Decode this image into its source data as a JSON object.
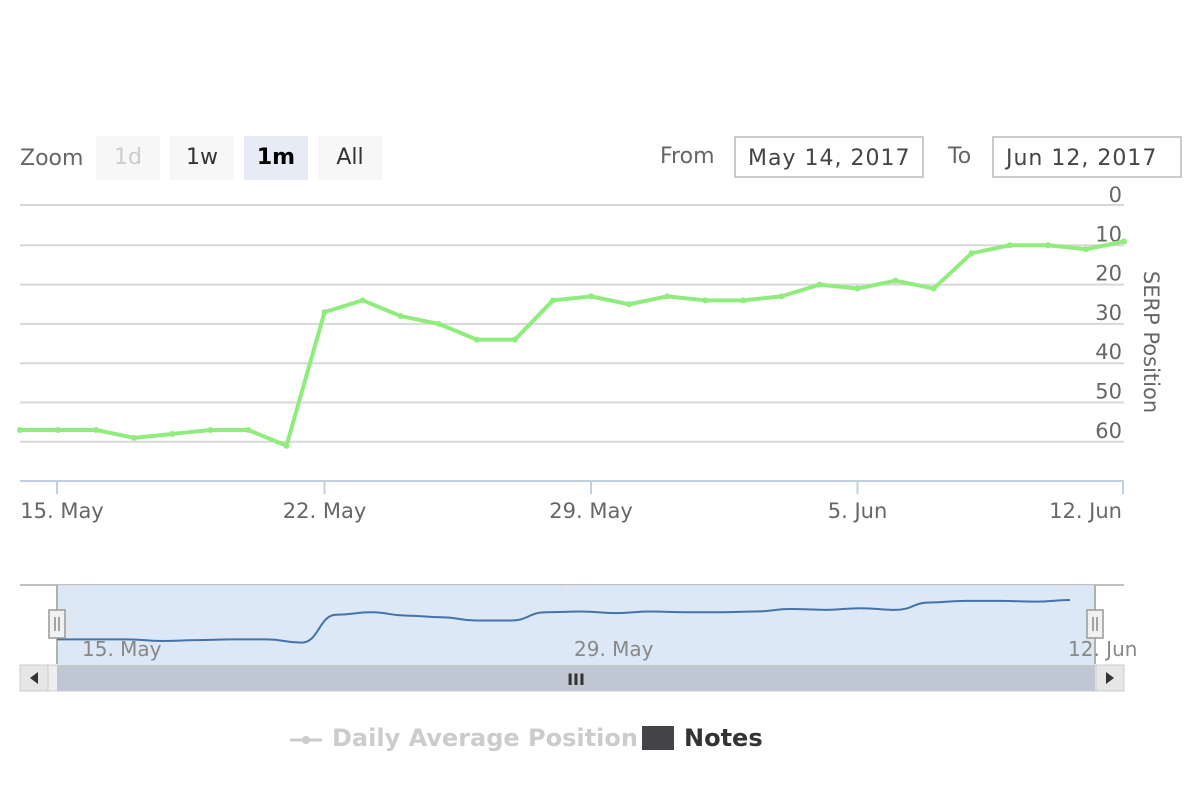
{
  "range_selector": {
    "zoom_label": "Zoom",
    "buttons": [
      {
        "label": "1d",
        "state": "disabled"
      },
      {
        "label": "1w",
        "state": "normal"
      },
      {
        "label": "1m",
        "state": "selected"
      },
      {
        "label": "All",
        "state": "normal"
      }
    ],
    "from_label": "From",
    "from_value": "May 14, 2017",
    "to_label": "To",
    "to_value": "Jun 12, 2017"
  },
  "chart_data": {
    "type": "line",
    "title": "",
    "ylabel": "SERP Position",
    "xlabel": "",
    "y_reversed": true,
    "ylim": [
      0,
      70
    ],
    "y_ticks": [
      "0",
      "10",
      "20",
      "30",
      "40",
      "50",
      "60"
    ],
    "x_ticks": [
      "15. May",
      "22. May",
      "29. May",
      "5. Jun",
      "12. Jun"
    ],
    "grid": true,
    "series": [
      {
        "name": "Daily Average Position",
        "color": "#90ed7d",
        "x": [
          "2017-05-14",
          "2017-05-15",
          "2017-05-16",
          "2017-05-17",
          "2017-05-18",
          "2017-05-19",
          "2017-05-20",
          "2017-05-21",
          "2017-05-22",
          "2017-05-23",
          "2017-05-24",
          "2017-05-25",
          "2017-05-26",
          "2017-05-27",
          "2017-05-28",
          "2017-05-29",
          "2017-05-30",
          "2017-05-31",
          "2017-06-01",
          "2017-06-02",
          "2017-06-03",
          "2017-06-04",
          "2017-06-05",
          "2017-06-06",
          "2017-06-07",
          "2017-06-08",
          "2017-06-09",
          "2017-06-10",
          "2017-06-11",
          "2017-06-12"
        ],
        "y": [
          57,
          57,
          57,
          59,
          58,
          57,
          57,
          61,
          27,
          24,
          28,
          30,
          34,
          34,
          24,
          23,
          25,
          23,
          24,
          24,
          23,
          20,
          21,
          19,
          21,
          12,
          10,
          10,
          11,
          9
        ]
      }
    ],
    "legend": [
      {
        "label": "Daily Average Position",
        "state": "hidden",
        "color": "#cccccc"
      },
      {
        "label": "Notes",
        "state": "visible",
        "color": "#434348"
      }
    ],
    "legend_position": "bottom-center"
  },
  "navigator": {
    "x_ticks": [
      "15. May",
      "29. May",
      "12. Jun"
    ],
    "scrollbar_grip": "III",
    "left_arrow_icon": "triangle-left",
    "right_arrow_icon": "triangle-right",
    "handle_grip": "||",
    "series_color": "#4572a7",
    "mask_color": "#d6e4f5"
  }
}
